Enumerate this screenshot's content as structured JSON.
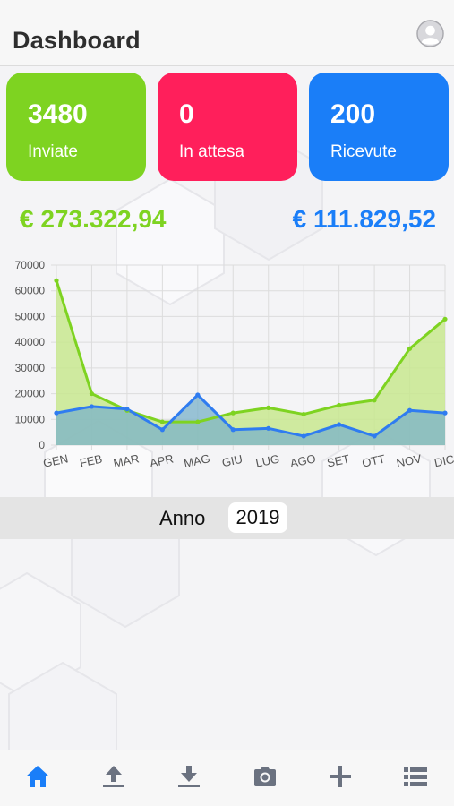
{
  "header": {
    "title": "Dashboard",
    "avatar_icon": "user-avatar-icon"
  },
  "cards": [
    {
      "value": "3480",
      "label": "Inviate",
      "color": "#7ed321"
    },
    {
      "value": "0",
      "label": "In attesa",
      "color": "#ff1f5b"
    },
    {
      "value": "200",
      "label": "Ricevute",
      "color": "#1a7ef8"
    }
  ],
  "amounts": {
    "sent": "€ 273.322,94",
    "received": "€ 111.829,52"
  },
  "chart_data": {
    "type": "area",
    "categories": [
      "GEN",
      "FEB",
      "MAR",
      "APR",
      "MAG",
      "GIU",
      "LUG",
      "AGO",
      "SET",
      "OTT",
      "NOV",
      "DIC"
    ],
    "series": [
      {
        "values": [
          64000,
          20000,
          13500,
          9000,
          9000,
          12500,
          14500,
          12000,
          15500,
          17500,
          37500,
          49000
        ],
        "color": "#7ed321",
        "fill": "#c8e88f"
      },
      {
        "values": [
          12500,
          15000,
          14000,
          6000,
          19500,
          6000,
          6500,
          3500,
          8000,
          3500,
          13500,
          12500
        ],
        "color": "#2f7cf0",
        "fill": "#7ab2c9"
      }
    ],
    "yticks": [
      "0",
      "10000",
      "20000",
      "30000",
      "40000",
      "50000",
      "60000",
      "70000"
    ],
    "ylim": [
      0,
      70000
    ],
    "grid": true
  },
  "year_selector": {
    "label": "Anno",
    "value": "2019"
  },
  "tabbar": {
    "items": [
      {
        "icon": "home-icon",
        "color": "#1a7ef8"
      },
      {
        "icon": "upload-icon",
        "color": "#6b7280"
      },
      {
        "icon": "download-icon",
        "color": "#6b7280"
      },
      {
        "icon": "camera-icon",
        "color": "#6b7280"
      },
      {
        "icon": "plus-icon",
        "color": "#6b7280"
      },
      {
        "icon": "list-icon",
        "color": "#6b7280"
      }
    ]
  }
}
